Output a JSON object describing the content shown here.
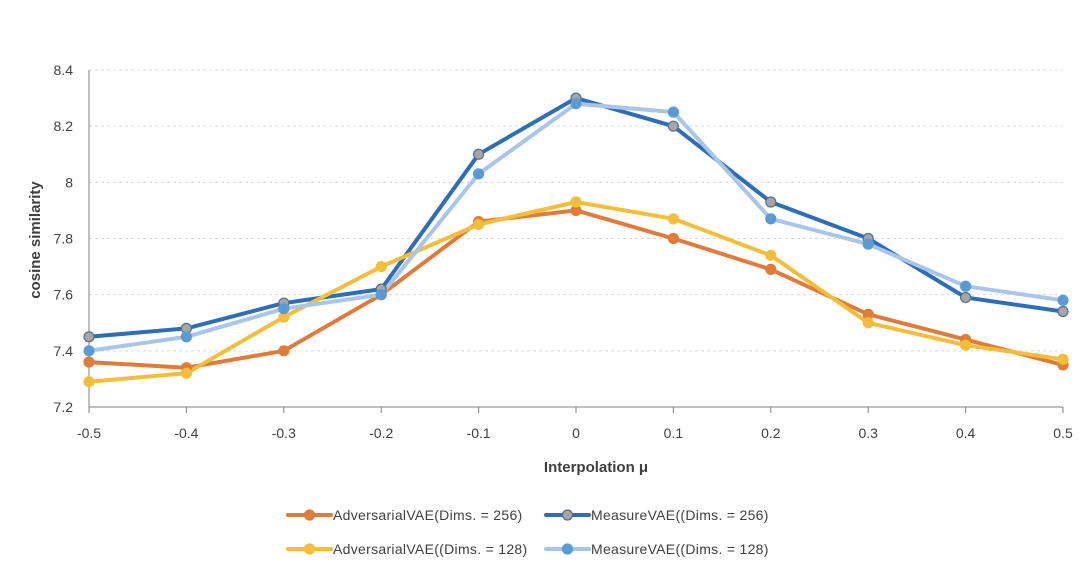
{
  "chart_data": {
    "type": "line",
    "title": "",
    "xlabel": "Interpolation μ",
    "ylabel": "cosine similarity",
    "x": [
      -0.5,
      -0.4,
      -0.3,
      -0.2,
      -0.1,
      0,
      0.1,
      0.2,
      0.3,
      0.4,
      0.5
    ],
    "x_tick_labels": [
      "-0.5",
      "-0.4",
      "-0.3",
      "-0.2",
      "-0.1",
      "0",
      "0.1",
      "0.2",
      "0.3",
      "0.4",
      "0.5"
    ],
    "y_ticks": [
      7.2,
      7.4,
      7.6,
      7.8,
      8.0,
      8.2,
      8.4
    ],
    "y_tick_labels": [
      "7.2",
      "7.4",
      "7.6",
      "7.8",
      "8",
      "8.2",
      "8.4"
    ],
    "ylim": [
      7.2,
      8.4
    ],
    "grid": true,
    "legend_position": "bottom",
    "series": [
      {
        "name": "AdversarialVAE(Dims. = 256)",
        "color": "#E07B39",
        "marker_edge": "#E07B39",
        "values": [
          7.36,
          7.34,
          7.4,
          7.6,
          7.86,
          7.9,
          7.8,
          7.69,
          7.53,
          7.44,
          7.35
        ]
      },
      {
        "name": "MeasureVAE((Dims. = 256)",
        "color": "#2E6DB8",
        "marker_fill": "#A6A6A6",
        "marker_edge": "#5A6E85",
        "values": [
          7.45,
          7.48,
          7.57,
          7.62,
          8.1,
          8.3,
          8.2,
          7.93,
          7.8,
          7.59,
          7.54
        ]
      },
      {
        "name": "AdversarialVAE((Dims. = 128)",
        "color": "#F4BE3A",
        "marker_edge": "#F4BE3A",
        "values": [
          7.29,
          7.32,
          7.52,
          7.7,
          7.85,
          7.93,
          7.87,
          7.74,
          7.5,
          7.42,
          7.37
        ]
      },
      {
        "name": "MeasureVAE((Dims. = 128)",
        "color": "#A9C5E8",
        "marker_fill": "#5B9BD5",
        "marker_edge": "#5B9BD5",
        "values": [
          7.4,
          7.45,
          7.55,
          7.6,
          8.03,
          8.28,
          8.25,
          7.87,
          7.78,
          7.63,
          7.58
        ]
      }
    ]
  }
}
